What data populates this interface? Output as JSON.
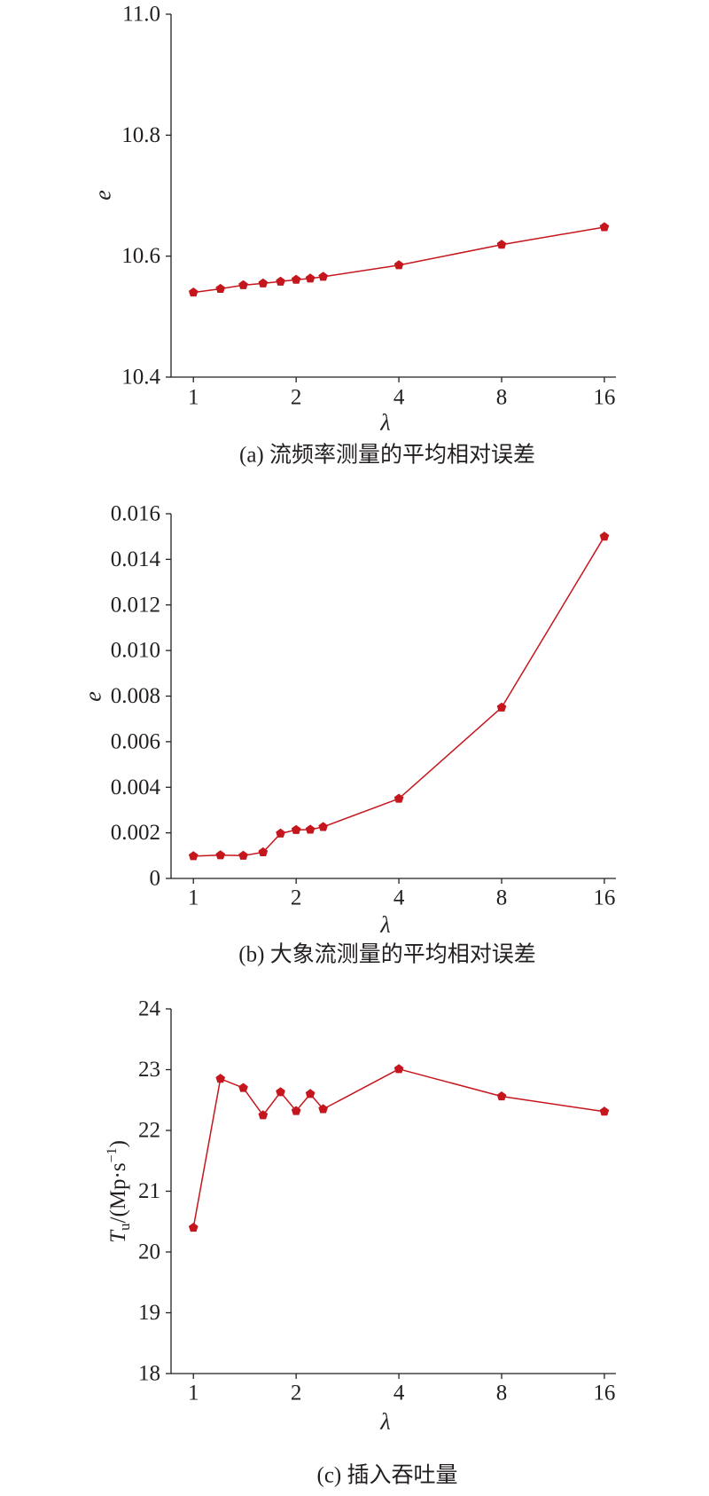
{
  "chart_data": [
    {
      "type": "line",
      "caption": "(a) 流频率测量的平均相对误差",
      "xlabel": "λ",
      "ylabel": "e",
      "x_scale": "log2",
      "xlim": [
        0.86,
        17.3
      ],
      "ylim": [
        10.4,
        11.0
      ],
      "xticks": [
        1,
        2,
        4,
        8,
        16
      ],
      "xtick_labels": [
        "1",
        "2",
        "4",
        "8",
        "16"
      ],
      "yticks": [
        10.4,
        10.6,
        10.8,
        11.0
      ],
      "ytick_labels": [
        "10.4",
        "10.6",
        "10.8",
        "11.0"
      ],
      "grid": false,
      "marker": "pentagon",
      "color": "#c4161c",
      "x": [
        1,
        1.2,
        1.4,
        1.6,
        1.8,
        2,
        2.2,
        2.4,
        4,
        8,
        16
      ],
      "series": [
        {
          "values": [
            10.54,
            10.546,
            10.552,
            10.555,
            10.558,
            10.561,
            10.563,
            10.566,
            10.585,
            10.619,
            10.648
          ]
        }
      ]
    },
    {
      "type": "line",
      "caption": "(b) 大象流测量的平均相对误差",
      "xlabel": "λ",
      "ylabel": "e",
      "x_scale": "log2",
      "xlim": [
        0.86,
        17.3
      ],
      "ylim": [
        0,
        0.016
      ],
      "xticks": [
        1,
        2,
        4,
        8,
        16
      ],
      "xtick_labels": [
        "1",
        "2",
        "4",
        "8",
        "16"
      ],
      "yticks": [
        0,
        0.002,
        0.004,
        0.006,
        0.008,
        0.01,
        0.012,
        0.014,
        0.016
      ],
      "ytick_labels": [
        "0",
        "0.002",
        "0.004",
        "0.006",
        "0.008",
        "0.010",
        "0.012",
        "0.014",
        "0.016"
      ],
      "grid": false,
      "marker": "pentagon",
      "color": "#c4161c",
      "x": [
        1,
        1.2,
        1.4,
        1.6,
        1.8,
        2,
        2.2,
        2.4,
        4,
        8,
        16
      ],
      "series": [
        {
          "values": [
            0.00098,
            0.00102,
            0.001,
            0.00115,
            0.00197,
            0.00213,
            0.00214,
            0.00226,
            0.0035,
            0.0075,
            0.015
          ]
        }
      ]
    },
    {
      "type": "line",
      "caption": "(c) 插入吞吐量",
      "xlabel": "λ",
      "ylabel": {
        "base": "T",
        "sub": "u",
        "mid": "/(Mp·s",
        "sup": "−1",
        "end": ")"
      },
      "x_scale": "log2",
      "xlim": [
        0.86,
        17.3
      ],
      "ylim": [
        18,
        24
      ],
      "xticks": [
        1,
        2,
        4,
        8,
        16
      ],
      "xtick_labels": [
        "1",
        "2",
        "4",
        "8",
        "16"
      ],
      "yticks": [
        18,
        19,
        20,
        21,
        22,
        23,
        24
      ],
      "ytick_labels": [
        "18",
        "19",
        "20",
        "21",
        "22",
        "23",
        "24"
      ],
      "grid": false,
      "marker": "pentagon",
      "color": "#c4161c",
      "x": [
        1,
        1.2,
        1.4,
        1.6,
        1.8,
        2,
        2.2,
        2.4,
        4,
        8,
        16
      ],
      "series": [
        {
          "values": [
            20.4,
            22.85,
            22.7,
            22.25,
            22.63,
            22.32,
            22.6,
            22.35,
            23.01,
            22.56,
            22.31
          ]
        }
      ]
    }
  ]
}
